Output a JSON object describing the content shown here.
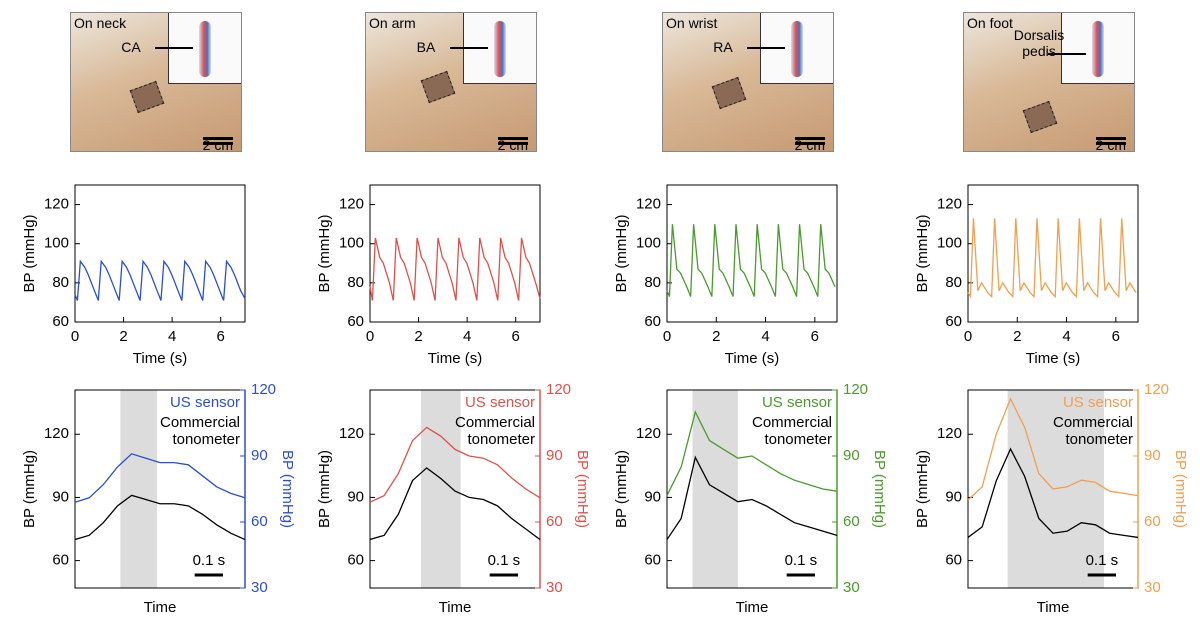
{
  "photos": [
    {
      "location": "On neck",
      "artery": "CA",
      "scale": "2 cm"
    },
    {
      "location": "On arm",
      "artery": "BA",
      "scale": "2 cm"
    },
    {
      "location": "On wrist",
      "artery": "RA",
      "scale": "2 cm"
    },
    {
      "location": "On foot",
      "artery": "Dorsalis pedis",
      "scale": "2 cm"
    }
  ],
  "chart_data": [
    {
      "type": "line",
      "xlabel": "Time (s)",
      "ylabel": "BP (mmHg)",
      "xlim": [
        0,
        7
      ],
      "ylim": [
        60,
        130
      ],
      "xticks": [
        0,
        2,
        4,
        6
      ],
      "yticks": [
        60,
        80,
        100,
        120
      ],
      "x": [
        0,
        0.1,
        0.22,
        0.4,
        0.55,
        0.8,
        0.96,
        1.08,
        1.26,
        1.41,
        1.66,
        1.82,
        1.94,
        2.12,
        2.27,
        2.52,
        2.68,
        2.8,
        2.98,
        3.13,
        3.38,
        3.54,
        3.66,
        3.84,
        3.99,
        4.24,
        4.4,
        4.52,
        4.7,
        4.85,
        5.1,
        5.26,
        5.38,
        5.56,
        5.71,
        5.96,
        6.12,
        6.24,
        6.42,
        6.57,
        6.82,
        7
      ],
      "series": [
        {
          "color": "#2b4fd0",
          "values": [
            74,
            71,
            91,
            88,
            84,
            76,
            71,
            91,
            88,
            84,
            76,
            71,
            91,
            88,
            84,
            76,
            71,
            91,
            88,
            84,
            76,
            71,
            91,
            88,
            84,
            76,
            71,
            91,
            88,
            84,
            76,
            71,
            91,
            88,
            84,
            76,
            71,
            91,
            88,
            84,
            76,
            72
          ]
        }
      ]
    },
    {
      "type": "line",
      "xlabel": "Time (s)",
      "ylabel": "BP (mmHg)",
      "xlim": [
        0,
        7
      ],
      "ylim": [
        60,
        130
      ],
      "xticks": [
        0,
        2,
        4,
        6
      ],
      "yticks": [
        60,
        80,
        100,
        120
      ],
      "x": [
        0,
        0.1,
        0.22,
        0.4,
        0.55,
        0.8,
        0.96,
        1.08,
        1.26,
        1.41,
        1.66,
        1.82,
        1.94,
        2.12,
        2.27,
        2.52,
        2.68,
        2.8,
        2.98,
        3.13,
        3.38,
        3.54,
        3.66,
        3.84,
        3.99,
        4.24,
        4.4,
        4.52,
        4.7,
        4.85,
        5.1,
        5.26,
        5.38,
        5.56,
        5.71,
        5.96,
        6.12,
        6.24,
        6.42,
        6.57,
        6.82,
        7
      ],
      "series": [
        {
          "color": "#e0504a",
          "values": [
            78,
            71,
            103,
            93,
            90,
            80,
            71,
            103,
            93,
            90,
            80,
            71,
            103,
            93,
            90,
            80,
            71,
            103,
            93,
            90,
            80,
            71,
            103,
            93,
            90,
            80,
            71,
            103,
            93,
            90,
            80,
            71,
            103,
            93,
            90,
            80,
            71,
            103,
            93,
            90,
            80,
            72
          ]
        }
      ]
    },
    {
      "type": "line",
      "xlabel": "Time (s)",
      "ylabel": "BP (mmHg)",
      "xlim": [
        0,
        6.9
      ],
      "ylim": [
        60,
        130
      ],
      "xticks": [
        0,
        2,
        4,
        6
      ],
      "yticks": [
        60,
        80,
        100,
        120
      ],
      "x": [
        0,
        0.1,
        0.22,
        0.4,
        0.55,
        0.8,
        0.96,
        1.08,
        1.26,
        1.41,
        1.66,
        1.82,
        1.94,
        2.12,
        2.27,
        2.52,
        2.68,
        2.8,
        2.98,
        3.13,
        3.38,
        3.54,
        3.66,
        3.84,
        3.99,
        4.24,
        4.4,
        4.52,
        4.7,
        4.85,
        5.1,
        5.26,
        5.38,
        5.56,
        5.71,
        5.96,
        6.12,
        6.24,
        6.42,
        6.57,
        6.82
      ],
      "series": [
        {
          "color": "#4a9a2e",
          "values": [
            76,
            73,
            110,
            87,
            85,
            78,
            73,
            110,
            87,
            85,
            78,
            73,
            110,
            87,
            85,
            78,
            73,
            110,
            87,
            85,
            78,
            73,
            110,
            87,
            85,
            78,
            73,
            110,
            87,
            85,
            78,
            73,
            110,
            87,
            85,
            78,
            73,
            110,
            87,
            85,
            78
          ]
        }
      ]
    },
    {
      "type": "line",
      "xlabel": "Time (s)",
      "ylabel": "BP (mmHg)",
      "xlim": [
        0,
        6.9
      ],
      "ylim": [
        60,
        130
      ],
      "xticks": [
        0,
        2,
        4,
        6
      ],
      "yticks": [
        60,
        80,
        100,
        120
      ],
      "x": [
        0,
        0.1,
        0.22,
        0.4,
        0.55,
        0.8,
        0.96,
        1.08,
        1.26,
        1.41,
        1.66,
        1.82,
        1.94,
        2.12,
        2.27,
        2.52,
        2.68,
        2.8,
        2.98,
        3.13,
        3.38,
        3.54,
        3.66,
        3.84,
        3.99,
        4.24,
        4.4,
        4.52,
        4.7,
        4.85,
        5.1,
        5.26,
        5.38,
        5.56,
        5.71,
        5.96,
        6.12,
        6.24,
        6.42,
        6.57,
        6.82
      ],
      "series": [
        {
          "color": "#f0a050",
          "values": [
            75,
            73,
            113,
            76,
            80,
            75,
            73,
            113,
            76,
            80,
            75,
            73,
            113,
            76,
            80,
            75,
            73,
            113,
            76,
            80,
            75,
            73,
            113,
            76,
            80,
            75,
            73,
            113,
            76,
            80,
            75,
            73,
            113,
            76,
            80,
            75,
            73,
            113,
            76,
            80,
            75
          ]
        }
      ]
    },
    {
      "type": "line",
      "xlabel": "Time",
      "ylabel": "BP (mmHg)",
      "y2label": "BP (mmHg)",
      "xlim": [
        0,
        0.6
      ],
      "ylim": [
        47,
        141
      ],
      "y2lim": [
        30,
        120
      ],
      "yticks": [
        60,
        90,
        120
      ],
      "y2ticks": [
        30,
        60,
        90,
        120
      ],
      "y2color": "#2b4fd0",
      "highlight": [
        0.16,
        0.29
      ],
      "scalebar": {
        "label": "0.1 s",
        "value": 0.1
      },
      "x": [
        0,
        0.05,
        0.1,
        0.15,
        0.2,
        0.25,
        0.3,
        0.35,
        0.4,
        0.45,
        0.5,
        0.55,
        0.6
      ],
      "series": [
        {
          "name": "US sensor",
          "color": "#2b4fd0",
          "axis": "y2",
          "values": [
            69,
            71,
            77,
            85,
            91,
            89,
            87,
            87,
            86,
            81,
            76,
            73,
            71
          ]
        },
        {
          "name": "Commercial tonometer",
          "color": "#000000",
          "values": [
            70,
            72,
            78,
            86,
            91,
            89,
            87,
            87,
            86,
            82,
            77,
            73,
            70
          ]
        }
      ]
    },
    {
      "type": "line",
      "xlabel": "Time",
      "ylabel": "BP (mmHg)",
      "y2label": "BP (mmHg)",
      "xlim": [
        0,
        0.6
      ],
      "ylim": [
        47,
        141
      ],
      "y2lim": [
        30,
        120
      ],
      "yticks": [
        60,
        90,
        120
      ],
      "y2ticks": [
        30,
        60,
        90,
        120
      ],
      "y2color": "#e0504a",
      "highlight": [
        0.18,
        0.32
      ],
      "scalebar": {
        "label": "0.1 s",
        "value": 0.1
      },
      "x": [
        0,
        0.05,
        0.1,
        0.15,
        0.2,
        0.25,
        0.3,
        0.35,
        0.4,
        0.45,
        0.5,
        0.55,
        0.6
      ],
      "series": [
        {
          "name": "US sensor",
          "color": "#e0504a",
          "axis": "y2",
          "values": [
            69,
            72,
            82,
            97,
            103,
            99,
            93,
            90,
            89,
            86,
            80,
            75,
            71
          ]
        },
        {
          "name": "Commercial tonometer",
          "color": "#000000",
          "values": [
            70,
            72,
            82,
            98,
            104,
            99,
            93,
            90,
            89,
            86,
            80,
            75,
            70
          ]
        }
      ]
    },
    {
      "type": "line",
      "xlabel": "Time",
      "ylabel": "BP (mmHg)",
      "y2label": "BP (mmHg)",
      "xlim": [
        0,
        0.6
      ],
      "ylim": [
        47,
        141
      ],
      "y2lim": [
        30,
        120
      ],
      "yticks": [
        60,
        90,
        120
      ],
      "y2ticks": [
        30,
        60,
        90,
        120
      ],
      "y2color": "#4a9a2e",
      "highlight": [
        0.09,
        0.25
      ],
      "scalebar": {
        "label": "0.1 s",
        "value": 0.1
      },
      "x": [
        0,
        0.05,
        0.1,
        0.15,
        0.2,
        0.25,
        0.3,
        0.35,
        0.4,
        0.45,
        0.5,
        0.55,
        0.6
      ],
      "series": [
        {
          "name": "US sensor",
          "color": "#4a9a2e",
          "axis": "y2",
          "values": [
            72,
            85,
            110,
            97,
            93,
            89,
            90,
            86,
            82,
            79,
            77,
            75,
            74
          ]
        },
        {
          "name": "Commercial tonometer",
          "color": "#000000",
          "values": [
            70,
            80,
            109,
            96,
            92,
            88,
            89,
            86,
            82,
            78,
            76,
            74,
            72
          ]
        }
      ]
    },
    {
      "type": "line",
      "xlabel": "Time",
      "ylabel": "BP (mmHg)",
      "y2label": "BP (mmHg)",
      "xlim": [
        0,
        0.6
      ],
      "ylim": [
        47,
        141
      ],
      "y2lim": [
        30,
        120
      ],
      "yticks": [
        60,
        90,
        120
      ],
      "y2ticks": [
        30,
        60,
        90,
        120
      ],
      "y2color": "#f0a050",
      "highlight": [
        0.14,
        0.48
      ],
      "scalebar": {
        "label": "0.1 s",
        "value": 0.1
      },
      "x": [
        0,
        0.05,
        0.1,
        0.15,
        0.2,
        0.25,
        0.3,
        0.35,
        0.4,
        0.45,
        0.5,
        0.55,
        0.6
      ],
      "series": [
        {
          "name": "US sensor",
          "color": "#f0a050",
          "axis": "y2",
          "values": [
            70,
            76,
            100,
            116,
            103,
            82,
            75,
            76,
            79,
            78,
            74,
            73,
            72
          ]
        },
        {
          "name": "Commercial tonometer",
          "color": "#000000",
          "values": [
            71,
            76,
            98,
            113,
            100,
            80,
            73,
            74,
            78,
            77,
            73,
            72,
            71
          ]
        }
      ]
    }
  ]
}
